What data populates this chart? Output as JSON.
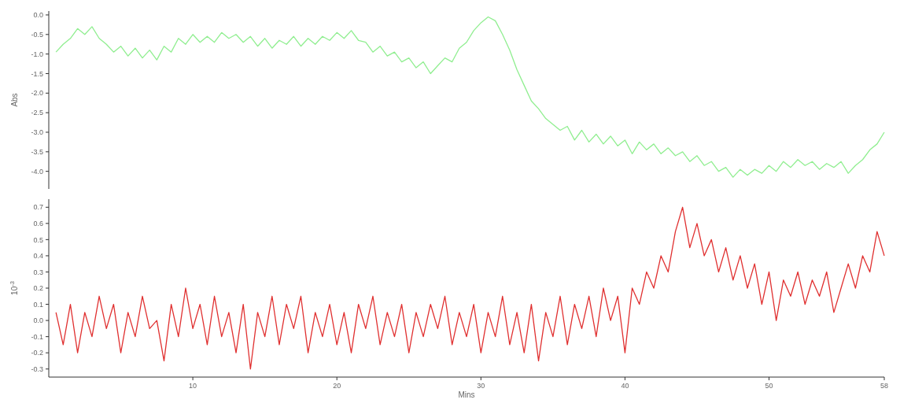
{
  "chart_data": [
    {
      "type": "line",
      "ylabel": "Abs",
      "ylim": [
        -4.45,
        0.1
      ],
      "yticks": [
        {
          "value": 0,
          "label": "0.0"
        },
        -0.5,
        {
          "value": -1,
          "label": "-1.0"
        },
        -1.5,
        {
          "value": -2,
          "label": "-2.0"
        },
        -2.5,
        {
          "value": -3,
          "label": "-3.0"
        },
        -3.5,
        {
          "value": -4,
          "label": "-4.0"
        }
      ],
      "tick_labels": "y",
      "x": [
        0.5,
        1,
        1.5,
        2,
        2.5,
        3,
        3.5,
        4,
        4.5,
        5,
        5.5,
        6,
        6.5,
        7,
        7.5,
        8,
        8.5,
        9,
        9.5,
        10,
        10.5,
        11,
        11.5,
        12,
        12.5,
        13,
        13.5,
        14,
        14.5,
        15,
        15.5,
        16,
        16.5,
        17,
        17.5,
        18,
        18.5,
        19,
        19.5,
        20,
        20.5,
        21,
        21.5,
        22,
        22.5,
        23,
        23.5,
        24,
        24.5,
        25,
        25.5,
        26,
        26.5,
        27,
        27.5,
        28,
        28.5,
        29,
        29.5,
        30,
        30.5,
        31,
        31.5,
        32,
        32.5,
        33,
        33.5,
        34,
        34.5,
        35,
        35.5,
        36,
        36.5,
        37,
        37.5,
        38,
        38.5,
        39,
        39.5,
        40,
        40.5,
        41,
        41.5,
        42,
        42.5,
        43,
        43.5,
        44,
        44.5,
        45,
        45.5,
        46,
        46.5,
        47,
        47.5,
        48,
        48.5,
        49,
        49.5,
        50,
        50.5,
        51,
        51.5,
        52,
        52.5,
        53,
        53.5,
        54,
        54.5,
        55,
        55.5,
        56,
        56.5,
        57,
        57.5,
        58
      ],
      "series": [
        {
          "color": "#90ee90",
          "values": [
            -0.95,
            -0.75,
            -0.6,
            -0.35,
            -0.5,
            -0.3,
            -0.6,
            -0.75,
            -0.95,
            -0.8,
            -1.05,
            -0.85,
            -1.1,
            -0.9,
            -1.15,
            -0.8,
            -0.95,
            -0.6,
            -0.75,
            -0.5,
            -0.7,
            -0.55,
            -0.7,
            -0.45,
            -0.6,
            -0.5,
            -0.7,
            -0.55,
            -0.8,
            -0.6,
            -0.85,
            -0.65,
            -0.75,
            -0.55,
            -0.8,
            -0.6,
            -0.75,
            -0.55,
            -0.65,
            -0.45,
            -0.6,
            -0.4,
            -0.65,
            -0.7,
            -0.95,
            -0.8,
            -1.05,
            -0.95,
            -1.2,
            -1.1,
            -1.35,
            -1.2,
            -1.5,
            -1.3,
            -1.1,
            -1.2,
            -0.85,
            -0.7,
            -0.4,
            -0.2,
            -0.05,
            -0.15,
            -0.5,
            -0.9,
            -1.4,
            -1.8,
            -2.2,
            -2.4,
            -2.65,
            -2.8,
            -2.95,
            -2.85,
            -3.2,
            -2.95,
            -3.25,
            -3.05,
            -3.3,
            -3.1,
            -3.35,
            -3.2,
            -3.55,
            -3.25,
            -3.45,
            -3.3,
            -3.55,
            -3.4,
            -3.6,
            -3.5,
            -3.75,
            -3.6,
            -3.85,
            -3.75,
            -4.0,
            -3.9,
            -4.15,
            -3.95,
            -4.1,
            -3.95,
            -4.05,
            -3.85,
            -4.0,
            -3.75,
            -3.9,
            -3.7,
            -3.85,
            -3.75,
            -3.95,
            -3.8,
            -3.9,
            -3.75,
            -4.05,
            -3.85,
            -3.7,
            -3.45,
            -3.3,
            -3.0
          ]
        }
      ]
    },
    {
      "type": "line",
      "ylabel": "10$^{-3}$",
      "xlabel": "Mins",
      "xlim": [
        0,
        58
      ],
      "xticks": [
        10,
        20,
        30,
        40,
        50,
        58
      ],
      "ylim": [
        -0.35,
        0.75
      ],
      "yticks": [
        {
          "value": 0.7,
          "label": "0.7"
        },
        0.6,
        0.5,
        0.4,
        0.3,
        0.2,
        0.1,
        {
          "value": 0,
          "label": "0.0"
        },
        -0.1,
        -0.2,
        -0.3
      ],
      "x": [
        0.5,
        1,
        1.5,
        2,
        2.5,
        3,
        3.5,
        4,
        4.5,
        5,
        5.5,
        6,
        6.5,
        7,
        7.5,
        8,
        8.5,
        9,
        9.5,
        10,
        10.5,
        11,
        11.5,
        12,
        12.5,
        13,
        13.5,
        14,
        14.5,
        15,
        15.5,
        16,
        16.5,
        17,
        17.5,
        18,
        18.5,
        19,
        19.5,
        20,
        20.5,
        21,
        21.5,
        22,
        22.5,
        23,
        23.5,
        24,
        24.5,
        25,
        25.5,
        26,
        26.5,
        27,
        27.5,
        28,
        28.5,
        29,
        29.5,
        30,
        30.5,
        31,
        31.5,
        32,
        32.5,
        33,
        33.5,
        34,
        34.5,
        35,
        35.5,
        36,
        36.5,
        37,
        37.5,
        38,
        38.5,
        39,
        39.5,
        40,
        40.5,
        41,
        41.5,
        42,
        42.5,
        43,
        43.5,
        44,
        44.5,
        45,
        45.5,
        46,
        46.5,
        47,
        47.5,
        48,
        48.5,
        49,
        49.5,
        50,
        50.5,
        51,
        51.5,
        52,
        52.5,
        53,
        53.5,
        54,
        54.5,
        55,
        55.5,
        56,
        56.5,
        57,
        57.5,
        58
      ],
      "series": [
        {
          "color": "#e03030",
          "values": [
            0.05,
            -0.15,
            0.1,
            -0.2,
            0.05,
            -0.1,
            0.15,
            -0.05,
            0.1,
            -0.2,
            0.05,
            -0.1,
            0.15,
            -0.05,
            0.0,
            -0.25,
            0.1,
            -0.1,
            0.2,
            -0.05,
            0.1,
            -0.15,
            0.15,
            -0.1,
            0.05,
            -0.2,
            0.1,
            -0.3,
            0.05,
            -0.1,
            0.15,
            -0.15,
            0.1,
            -0.05,
            0.15,
            -0.2,
            0.05,
            -0.1,
            0.1,
            -0.15,
            0.05,
            -0.2,
            0.1,
            -0.05,
            0.15,
            -0.15,
            0.05,
            -0.1,
            0.1,
            -0.2,
            0.05,
            -0.1,
            0.1,
            -0.05,
            0.15,
            -0.15,
            0.05,
            -0.1,
            0.1,
            -0.2,
            0.05,
            -0.1,
            0.15,
            -0.15,
            0.05,
            -0.2,
            0.1,
            -0.25,
            0.05,
            -0.1,
            0.15,
            -0.15,
            0.1,
            -0.05,
            0.15,
            -0.1,
            0.2,
            0.0,
            0.15,
            -0.2,
            0.2,
            0.1,
            0.3,
            0.2,
            0.4,
            0.3,
            0.55,
            0.7,
            0.45,
            0.6,
            0.4,
            0.5,
            0.3,
            0.45,
            0.25,
            0.4,
            0.2,
            0.35,
            0.1,
            0.3,
            0.0,
            0.25,
            0.15,
            0.3,
            0.1,
            0.25,
            0.15,
            0.3,
            0.05,
            0.2,
            0.35,
            0.2,
            0.4,
            0.3,
            0.55,
            0.4
          ]
        }
      ]
    }
  ]
}
